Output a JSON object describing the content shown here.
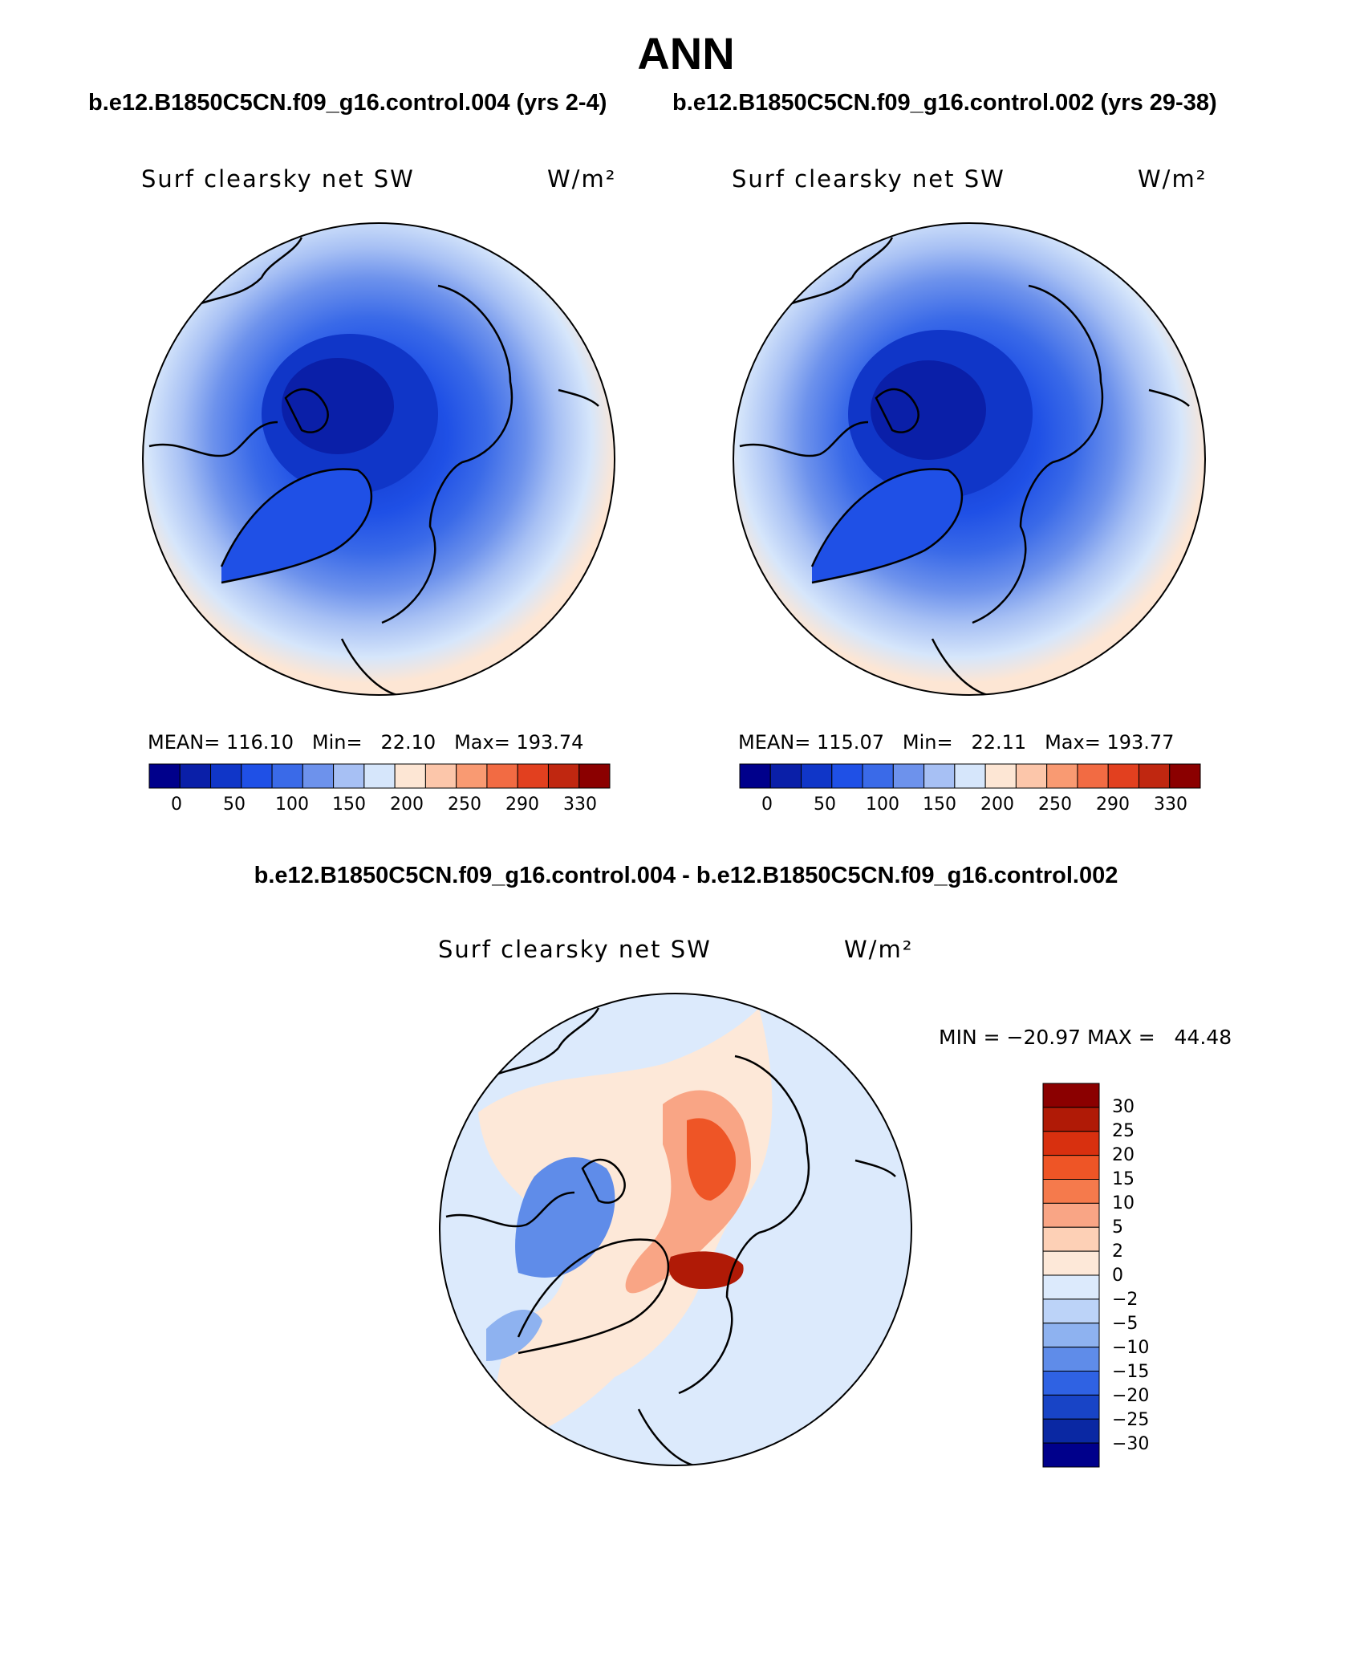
{
  "page": {
    "main_title": "ANN",
    "left_case_title": "b.e12.B1850C5CN.f09_g16.control.004 (yrs 2-4)",
    "right_case_title": "b.e12.B1850C5CN.f09_g16.control.002 (yrs 29-38)",
    "diff_title": "b.e12.B1850C5CN.f09_g16.control.004 - b.e12.B1850C5CN.f09_g16.control.002"
  },
  "panels": [
    {
      "variable": "Surf clearsky net SW",
      "units": "W/m²",
      "stats": {
        "mean_label": "MEAN=",
        "mean": "116.10",
        "min_label": "Min=",
        "min": "22.10",
        "max_label": "Max=",
        "max": "193.74"
      },
      "colorbar_ticks": [
        "0",
        "50",
        "100",
        "150",
        "200",
        "250",
        "290",
        "330"
      ]
    },
    {
      "variable": "Surf clearsky net SW",
      "units": "W/m²",
      "stats": {
        "mean_label": "MEAN=",
        "mean": "115.07",
        "min_label": "Min=",
        "min": "22.11",
        "max_label": "Max=",
        "max": "193.77"
      },
      "colorbar_ticks": [
        "0",
        "50",
        "100",
        "150",
        "200",
        "250",
        "290",
        "330"
      ]
    },
    {
      "variable": "Surf clearsky net SW",
      "units": "W/m²",
      "stats": {
        "min_label": "MIN =",
        "min": "−20.97",
        "max_label": "MAX =",
        "max": "44.48"
      },
      "colorbar_ticks": [
        "30",
        "25",
        "20",
        "15",
        "10",
        "5",
        "2",
        "0",
        "−2",
        "−5",
        "−10",
        "−15",
        "−20",
        "−25",
        "−30"
      ]
    }
  ],
  "colors": {
    "abs_scale": [
      "#00008b",
      "#0a1fa8",
      "#1036c8",
      "#1f50e6",
      "#3a6ae8",
      "#6d92ec",
      "#a7c0f4",
      "#d6e6fb",
      "#fde6d4",
      "#fcc6aa",
      "#f99a72",
      "#f26b43",
      "#e2401f",
      "#c02710",
      "#8b0000"
    ],
    "diff_scale_top_to_bottom": [
      "#8b0000",
      "#b01a06",
      "#d8300f",
      "#ee5526",
      "#f57a4c",
      "#f9a585",
      "#fdd0b6",
      "#fde8d8",
      "#dceafc",
      "#bcd3f8",
      "#8eb2f0",
      "#5f8ce9",
      "#2f62e3",
      "#1844c6",
      "#0a28a3",
      "#00008b"
    ],
    "map_outline": "#000000"
  },
  "map_features": {
    "coastline_style": "black",
    "dominant_field_left": "blue (high-latitude minimum)",
    "dominant_field_right": "blue (high-latitude minimum)",
    "difference_pattern": "mixed red/blue"
  }
}
